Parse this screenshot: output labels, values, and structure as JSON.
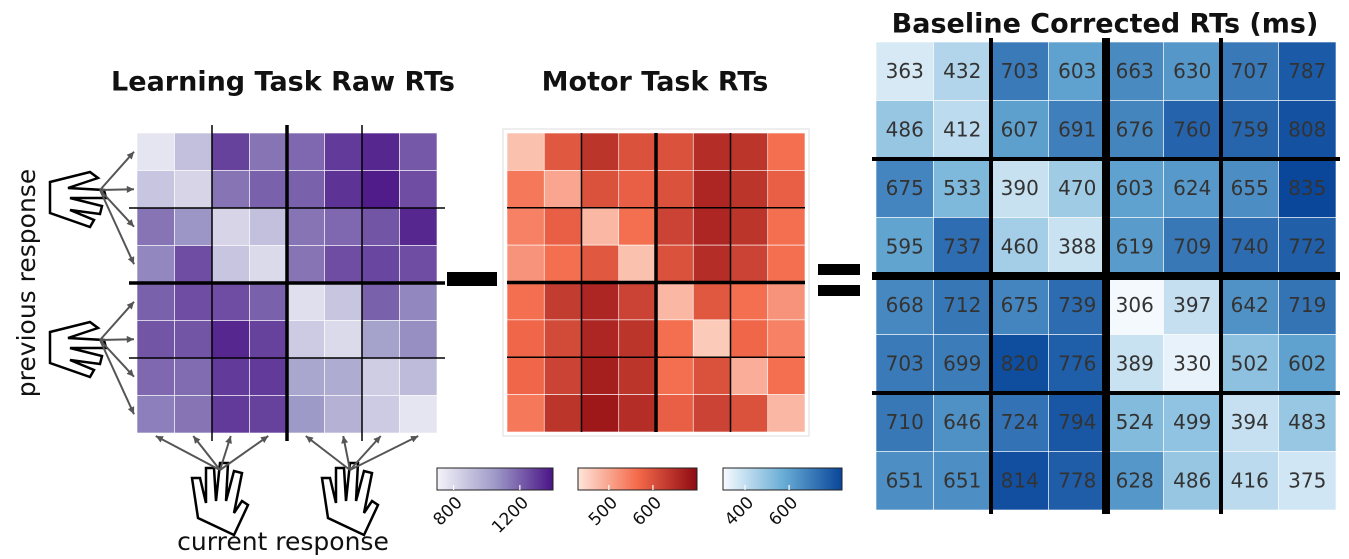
{
  "chart_data": [
    {
      "type": "heatmap",
      "title": "Learning Task Raw RTs",
      "y_label": "previous response",
      "x_label": "current response",
      "colors": [
        "#f4f3f9",
        "#9e9ac8",
        "#4a1486"
      ],
      "clim": [
        700,
        1400
      ],
      "cticks": [
        800,
        1200
      ],
      "show_values": false,
      "values": [
        [
          760,
          900,
          1280,
          1150,
          1180,
          1300,
          1350,
          1220
        ],
        [
          880,
          820,
          1150,
          1200,
          1200,
          1320,
          1380,
          1250
        ],
        [
          1150,
          1060,
          820,
          900,
          1150,
          1180,
          1230,
          1350
        ],
        [
          1100,
          1250,
          880,
          800,
          1150,
          1250,
          1270,
          1250
        ],
        [
          1200,
          1250,
          1250,
          1200,
          780,
          880,
          1200,
          1100
        ],
        [
          1230,
          1230,
          1350,
          1280,
          860,
          800,
          1020,
          1080
        ],
        [
          1180,
          1170,
          1300,
          1300,
          1000,
          980,
          850,
          920
        ],
        [
          1120,
          1150,
          1300,
          1280,
          1050,
          960,
          860,
          760
        ]
      ]
    },
    {
      "type": "heatmap",
      "title": "Motor Task RTs",
      "colors": [
        "#fee5d9",
        "#f46a4b",
        "#8f0a12"
      ],
      "clim": [
        430,
        700
      ],
      "cticks": [
        500,
        600
      ],
      "show_values": false,
      "values": [
        [
          470,
          590,
          640,
          600,
          600,
          650,
          640,
          560
        ],
        [
          550,
          500,
          600,
          580,
          600,
          660,
          640,
          580
        ],
        [
          540,
          580,
          480,
          560,
          620,
          660,
          640,
          560
        ],
        [
          520,
          560,
          590,
          470,
          600,
          650,
          620,
          560
        ],
        [
          560,
          630,
          660,
          620,
          480,
          590,
          560,
          520
        ],
        [
          570,
          610,
          660,
          640,
          560,
          460,
          570,
          540
        ],
        [
          570,
          620,
          670,
          640,
          560,
          600,
          490,
          560
        ],
        [
          550,
          640,
          680,
          650,
          580,
          620,
          600,
          480
        ]
      ]
    },
    {
      "type": "heatmap",
      "title": "Baseline Corrected RTs (ms)",
      "colors": [
        "#f7fbff",
        "#6baed6",
        "#08459a"
      ],
      "clim": [
        300,
        840
      ],
      "cticks": [
        400,
        600
      ],
      "show_values": true,
      "values": [
        [
          363,
          432,
          703,
          603,
          663,
          630,
          707,
          787
        ],
        [
          486,
          412,
          607,
          691,
          676,
          760,
          759,
          808
        ],
        [
          675,
          533,
          390,
          470,
          603,
          624,
          655,
          835
        ],
        [
          595,
          737,
          460,
          388,
          619,
          709,
          740,
          772
        ],
        [
          668,
          712,
          675,
          739,
          306,
          397,
          642,
          719
        ],
        [
          703,
          699,
          820,
          776,
          389,
          330,
          502,
          602
        ],
        [
          710,
          646,
          724,
          794,
          524,
          499,
          394,
          483
        ],
        [
          651,
          651,
          814,
          778,
          628,
          486,
          416,
          375
        ]
      ]
    }
  ]
}
